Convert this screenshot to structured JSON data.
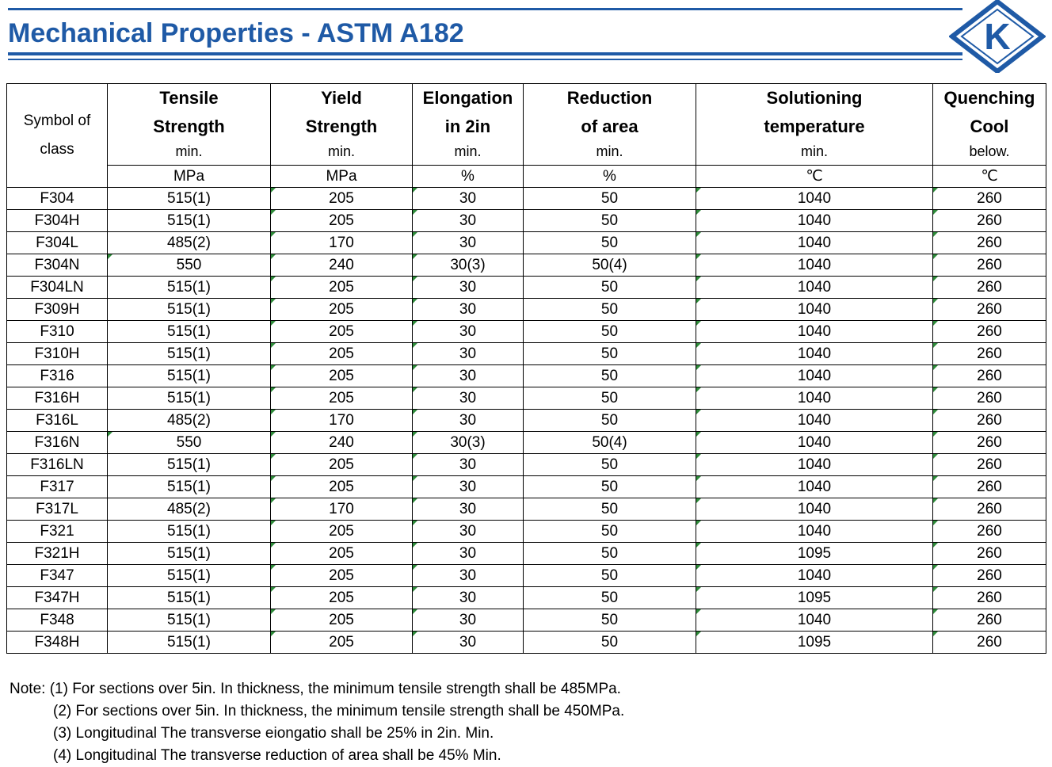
{
  "header": {
    "title": "Mechanical Properties - ASTM A182",
    "logo_letter": "K",
    "brand_color": "#1f5aa6"
  },
  "table": {
    "headers": [
      {
        "lines": [
          "Symbol of",
          "class"
        ],
        "sub": "",
        "unit": ""
      },
      {
        "lines": [
          "Tensile",
          "Strength"
        ],
        "sub": "min.",
        "unit": "MPa"
      },
      {
        "lines": [
          "Yield",
          "Strength"
        ],
        "sub": "min.",
        "unit": "MPa"
      },
      {
        "lines": [
          "Elongation",
          "in 2in"
        ],
        "sub": "min.",
        "unit": "%"
      },
      {
        "lines": [
          "Reduction",
          "of area"
        ],
        "sub": "min.",
        "unit": "%"
      },
      {
        "lines": [
          "Solutioning",
          "temperature"
        ],
        "sub": "min.",
        "unit": "℃"
      },
      {
        "lines": [
          "Quenching",
          "Cool"
        ],
        "sub": "below.",
        "unit": "℃"
      }
    ],
    "rows": [
      [
        "F304",
        "515(1)",
        "205",
        "30",
        "50",
        "1040",
        "260"
      ],
      [
        "F304H",
        "515(1)",
        "205",
        "30",
        "50",
        "1040",
        "260"
      ],
      [
        "F304L",
        "485(2)",
        "170",
        "30",
        "50",
        "1040",
        "260"
      ],
      [
        "F304N",
        "550",
        "240",
        "30(3)",
        "50(4)",
        "1040",
        "260"
      ],
      [
        "F304LN",
        "515(1)",
        "205",
        "30",
        "50",
        "1040",
        "260"
      ],
      [
        "F309H",
        "515(1)",
        "205",
        "30",
        "50",
        "1040",
        "260"
      ],
      [
        "F310",
        "515(1)",
        "205",
        "30",
        "50",
        "1040",
        "260"
      ],
      [
        "F310H",
        "515(1)",
        "205",
        "30",
        "50",
        "1040",
        "260"
      ],
      [
        "F316",
        "515(1)",
        "205",
        "30",
        "50",
        "1040",
        "260"
      ],
      [
        "F316H",
        "515(1)",
        "205",
        "30",
        "50",
        "1040",
        "260"
      ],
      [
        "F316L",
        "485(2)",
        "170",
        "30",
        "50",
        "1040",
        "260"
      ],
      [
        "F316N",
        "550",
        "240",
        "30(3)",
        "50(4)",
        "1040",
        "260"
      ],
      [
        "F316LN",
        "515(1)",
        "205",
        "30",
        "50",
        "1040",
        "260"
      ],
      [
        "F317",
        "515(1)",
        "205",
        "30",
        "50",
        "1040",
        "260"
      ],
      [
        "F317L",
        "485(2)",
        "170",
        "30",
        "50",
        "1040",
        "260"
      ],
      [
        "F321",
        "515(1)",
        "205",
        "30",
        "50",
        "1040",
        "260"
      ],
      [
        "F321H",
        "515(1)",
        "205",
        "30",
        "50",
        "1095",
        "260"
      ],
      [
        "F347",
        "515(1)",
        "205",
        "30",
        "50",
        "1040",
        "260"
      ],
      [
        "F347H",
        "515(1)",
        "205",
        "30",
        "50",
        "1095",
        "260"
      ],
      [
        "F348",
        "515(1)",
        "205",
        "30",
        "50",
        "1040",
        "260"
      ],
      [
        "F348H",
        "515(1)",
        "205",
        "30",
        "50",
        "1095",
        "260"
      ]
    ]
  },
  "notes": [
    "Note: (1) For sections over 5in. In thickness, the minimum tensile strength shall be 485MPa.",
    "(2) For sections over 5in. In thickness, the minimum tensile strength shall be 450MPa.",
    "(3) Longitudinal The transverse eiongatio shall be 25% in 2in. Min.",
    "(4) Longitudinal The transverse reduction of area shall be 45% Min."
  ]
}
